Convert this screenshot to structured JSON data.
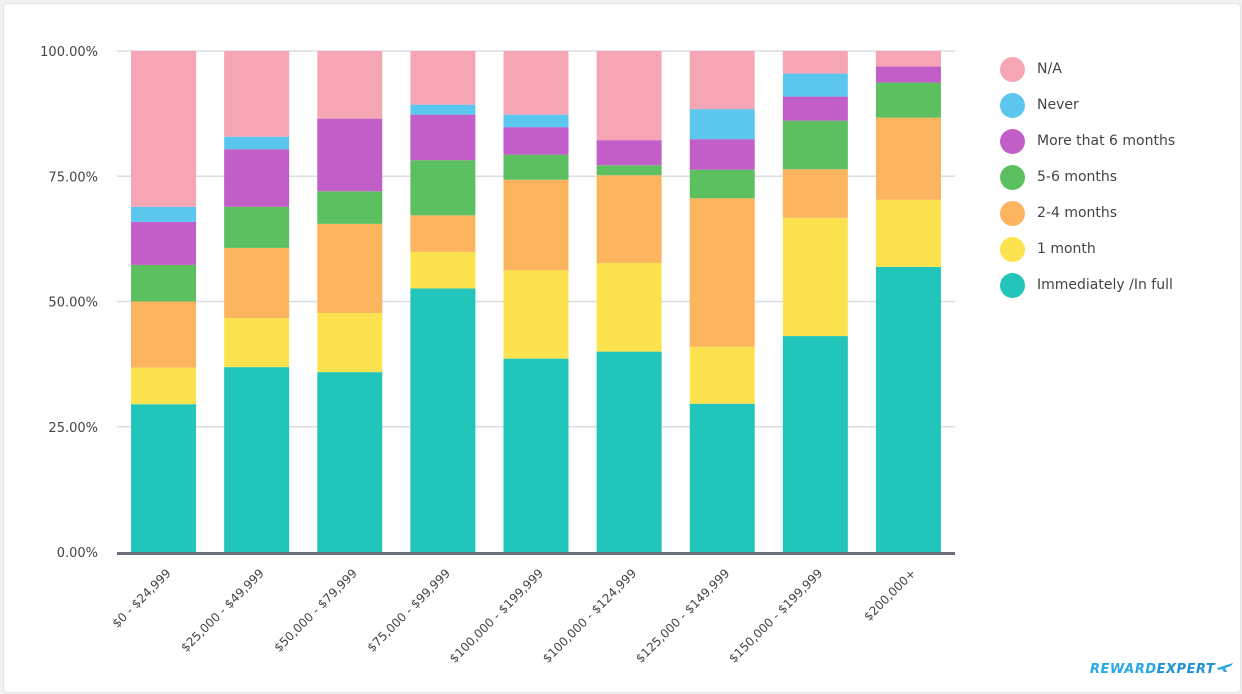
{
  "chart_data": {
    "type": "bar",
    "stacked": true,
    "categories": [
      "$0 - $24,999",
      "$25,000 - $49,999",
      "$50,000 - $79,999",
      "$75,000 - $99,999",
      "$100,000 - $199,999",
      "$100,000 - $124,999",
      "$125,000 - $149,999",
      "$150,000 - $199,999",
      "$200,000+"
    ],
    "y_ticks": [
      "0.00%",
      "25.00%",
      "50.00%",
      "75.00%",
      "100.00%"
    ],
    "ylim": [
      0,
      100
    ],
    "grid": true,
    "legend_position": "right",
    "series": [
      {
        "name": "Immediately /In full",
        "color": "#21c5b9",
        "values": [
          29.5,
          36.9,
          35.9,
          52.6,
          38.6,
          40.0,
          29.6,
          43.1,
          56.9
        ]
      },
      {
        "name": "1 month",
        "color": "#fde24f",
        "values": [
          7.3,
          9.8,
          11.8,
          7.3,
          17.6,
          17.7,
          11.4,
          23.6,
          13.4
        ]
      },
      {
        "name": "2-4 months",
        "color": "#fdb45e",
        "values": [
          13.2,
          14.0,
          17.8,
          7.3,
          18.1,
          17.5,
          29.6,
          9.7,
          16.4
        ]
      },
      {
        "name": "5-6 months",
        "color": "#5cc061",
        "values": [
          7.3,
          8.2,
          6.5,
          11.0,
          5.0,
          2.0,
          5.7,
          9.7,
          7.0
        ]
      },
      {
        "name": "More that 6 months",
        "color": "#c25ec8",
        "values": [
          8.6,
          11.5,
          14.5,
          9.1,
          5.5,
          5.0,
          6.1,
          4.8,
          3.2
        ]
      },
      {
        "name": "Never",
        "color": "#5bc6ee",
        "values": [
          3.0,
          2.5,
          0,
          2.0,
          2.5,
          0,
          6.0,
          4.6,
          0
        ]
      },
      {
        "name": "N/A",
        "color": "#f6a5b5",
        "values": [
          31.1,
          17.1,
          13.5,
          10.7,
          12.7,
          17.8,
          11.6,
          4.5,
          3.1
        ]
      }
    ],
    "colors": {
      "axis": "#6b7076",
      "grid": "#d8dee4"
    }
  },
  "brand": {
    "reward": "REWARD",
    "expert": "EXPERT"
  }
}
